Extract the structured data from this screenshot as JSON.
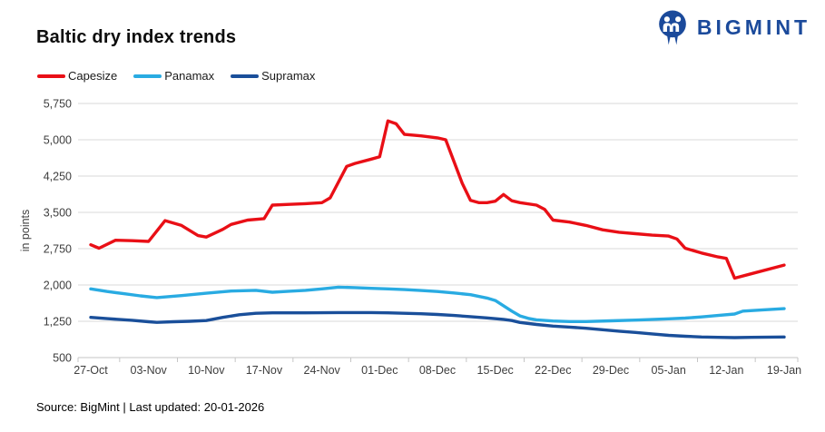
{
  "header": {
    "title": "Baltic dry index trends"
  },
  "logo": {
    "text": "BIGMINT",
    "color": "#1b4a9b"
  },
  "legend": {
    "items": [
      {
        "label": "Capesize",
        "color": "#e90f16"
      },
      {
        "label": "Panamax",
        "color": "#29abe2"
      },
      {
        "label": "Supramax",
        "color": "#1a4f9a"
      }
    ]
  },
  "chart_data": {
    "type": "line",
    "title": "Baltic dry index trends",
    "ylabel": "in points",
    "ylim": [
      500,
      5750
    ],
    "yticks": [
      500,
      1250,
      2000,
      2750,
      3500,
      4250,
      5000,
      5750
    ],
    "ytick_labels": [
      "500",
      "1,250",
      "2,000",
      "2,750",
      "3,500",
      "4,250",
      "5,000",
      "5,750"
    ],
    "x_unit": "days since 27-Oct",
    "xlim": [
      0,
      84
    ],
    "xticks": [
      0,
      7,
      14,
      21,
      28,
      35,
      42,
      49,
      56,
      63,
      70,
      77,
      84
    ],
    "xtick_labels": [
      "27-Oct",
      "03-Nov",
      "10-Nov",
      "17-Nov",
      "24-Nov",
      "01-Dec",
      "08-Dec",
      "15-Dec",
      "22-Dec",
      "29-Dec",
      "05-Jan",
      "12-Jan",
      "19-Jan"
    ],
    "grid": "horizontal",
    "legend_position": "top-left",
    "series": [
      {
        "name": "Capesize",
        "color": "#e90f16",
        "points": [
          [
            0,
            2830
          ],
          [
            1,
            2760
          ],
          [
            3,
            2925
          ],
          [
            5,
            2915
          ],
          [
            7,
            2900
          ],
          [
            9,
            3330
          ],
          [
            11,
            3230
          ],
          [
            13,
            3020
          ],
          [
            14,
            2990
          ],
          [
            16,
            3150
          ],
          [
            17,
            3250
          ],
          [
            19,
            3340
          ],
          [
            21,
            3370
          ],
          [
            22,
            3650
          ],
          [
            24,
            3665
          ],
          [
            26,
            3680
          ],
          [
            28,
            3700
          ],
          [
            29,
            3800
          ],
          [
            31,
            4450
          ],
          [
            32,
            4510
          ],
          [
            34,
            4600
          ],
          [
            35,
            4650
          ],
          [
            36,
            5390
          ],
          [
            37,
            5330
          ],
          [
            38,
            5110
          ],
          [
            40,
            5080
          ],
          [
            42,
            5040
          ],
          [
            43,
            5000
          ],
          [
            44,
            4550
          ],
          [
            45,
            4100
          ],
          [
            46,
            3750
          ],
          [
            47,
            3700
          ],
          [
            48,
            3700
          ],
          [
            49,
            3730
          ],
          [
            50,
            3870
          ],
          [
            51,
            3740
          ],
          [
            52,
            3700
          ],
          [
            54,
            3650
          ],
          [
            55,
            3560
          ],
          [
            56,
            3340
          ],
          [
            58,
            3300
          ],
          [
            60,
            3230
          ],
          [
            62,
            3140
          ],
          [
            64,
            3090
          ],
          [
            66,
            3060
          ],
          [
            68,
            3030
          ],
          [
            70,
            3010
          ],
          [
            71,
            2950
          ],
          [
            72,
            2760
          ],
          [
            74,
            2660
          ],
          [
            76,
            2580
          ],
          [
            77,
            2550
          ],
          [
            78,
            2140
          ],
          [
            80,
            2230
          ],
          [
            84,
            2410
          ]
        ]
      },
      {
        "name": "Panamax",
        "color": "#29abe2",
        "points": [
          [
            0,
            1920
          ],
          [
            2,
            1865
          ],
          [
            4,
            1820
          ],
          [
            6,
            1775
          ],
          [
            8,
            1740
          ],
          [
            11,
            1780
          ],
          [
            14,
            1830
          ],
          [
            17,
            1875
          ],
          [
            20,
            1890
          ],
          [
            22,
            1850
          ],
          [
            24,
            1870
          ],
          [
            26,
            1890
          ],
          [
            28,
            1920
          ],
          [
            30,
            1955
          ],
          [
            32,
            1945
          ],
          [
            34,
            1930
          ],
          [
            36,
            1920
          ],
          [
            38,
            1905
          ],
          [
            40,
            1885
          ],
          [
            42,
            1865
          ],
          [
            44,
            1835
          ],
          [
            46,
            1800
          ],
          [
            48,
            1730
          ],
          [
            49,
            1680
          ],
          [
            50,
            1570
          ],
          [
            51,
            1460
          ],
          [
            52,
            1360
          ],
          [
            53,
            1310
          ],
          [
            54,
            1280
          ],
          [
            56,
            1255
          ],
          [
            58,
            1245
          ],
          [
            60,
            1245
          ],
          [
            63,
            1260
          ],
          [
            66,
            1275
          ],
          [
            70,
            1300
          ],
          [
            72,
            1315
          ],
          [
            74,
            1340
          ],
          [
            76,
            1370
          ],
          [
            78,
            1400
          ],
          [
            79,
            1460
          ],
          [
            81,
            1480
          ],
          [
            84,
            1510
          ]
        ]
      },
      {
        "name": "Supramax",
        "color": "#1a4f9a",
        "points": [
          [
            0,
            1330
          ],
          [
            2,
            1305
          ],
          [
            5,
            1270
          ],
          [
            7,
            1240
          ],
          [
            8,
            1228
          ],
          [
            10,
            1240
          ],
          [
            12,
            1250
          ],
          [
            14,
            1265
          ],
          [
            16,
            1330
          ],
          [
            18,
            1385
          ],
          [
            20,
            1415
          ],
          [
            22,
            1425
          ],
          [
            26,
            1425
          ],
          [
            30,
            1430
          ],
          [
            34,
            1430
          ],
          [
            36,
            1425
          ],
          [
            38,
            1415
          ],
          [
            40,
            1405
          ],
          [
            42,
            1390
          ],
          [
            44,
            1370
          ],
          [
            46,
            1345
          ],
          [
            48,
            1320
          ],
          [
            50,
            1290
          ],
          [
            51,
            1265
          ],
          [
            52,
            1225
          ],
          [
            54,
            1185
          ],
          [
            56,
            1150
          ],
          [
            58,
            1130
          ],
          [
            60,
            1105
          ],
          [
            62,
            1075
          ],
          [
            64,
            1045
          ],
          [
            66,
            1020
          ],
          [
            68,
            990
          ],
          [
            70,
            960
          ],
          [
            72,
            940
          ],
          [
            74,
            925
          ],
          [
            76,
            918
          ],
          [
            78,
            912
          ],
          [
            80,
            918
          ],
          [
            84,
            925
          ]
        ]
      }
    ]
  },
  "footer": {
    "text": "Source: BigMint | Last updated: 20-01-2026"
  }
}
